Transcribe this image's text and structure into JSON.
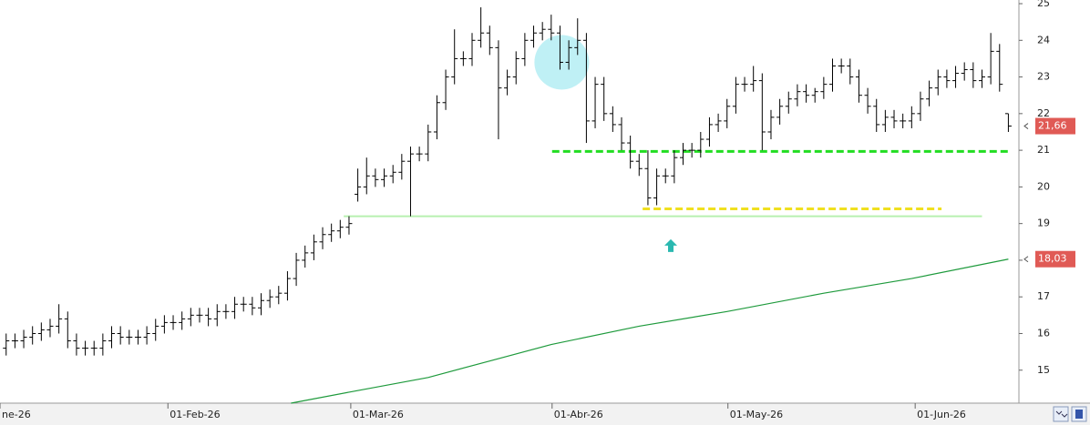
{
  "chart_data": {
    "type": "ohlc",
    "open": [
      15.6,
      15.8,
      15.8,
      15.9,
      16.0,
      16.1,
      16.2,
      16.4,
      15.8,
      15.6,
      15.6,
      15.6,
      15.8,
      16.0,
      15.9,
      15.9,
      15.9,
      16.0,
      16.2,
      16.3,
      16.3,
      16.4,
      16.5,
      16.5,
      16.4,
      16.6,
      16.6,
      16.8,
      16.8,
      16.7,
      16.9,
      17.0,
      17.1,
      17.5,
      18.0,
      18.2,
      18.5,
      18.7,
      18.8,
      18.9,
      19.8,
      20.0,
      20.3,
      20.2,
      20.3,
      20.4,
      20.7,
      20.9,
      20.9,
      21.5,
      22.3,
      23.0,
      23.5,
      23.5,
      24.0,
      24.2,
      23.8,
      22.7,
      23.0,
      23.5,
      24.0,
      24.2,
      24.3,
      24.2,
      23.4,
      23.8,
      24.0,
      21.8,
      22.8,
      22.0,
      21.7,
      21.2,
      20.7,
      20.5,
      19.7,
      20.3,
      20.3,
      20.8,
      21.0,
      21.0,
      21.3,
      21.7,
      21.8,
      22.2,
      22.8,
      22.8,
      22.9,
      21.5,
      21.9,
      22.2,
      22.4,
      22.6,
      22.5,
      22.6,
      22.8,
      23.3,
      23.3,
      23.0,
      22.5,
      22.2,
      21.7,
      21.9,
      21.8,
      21.8,
      22.0,
      22.4,
      22.7,
      23.0,
      22.9,
      23.1,
      23.2,
      22.9,
      23.0,
      23.7,
      22.0
    ],
    "high": [
      16.0,
      16.0,
      16.1,
      16.2,
      16.3,
      16.4,
      16.8,
      16.6,
      16.0,
      15.8,
      15.8,
      16.0,
      16.2,
      16.2,
      16.1,
      16.1,
      16.2,
      16.4,
      16.5,
      16.5,
      16.6,
      16.7,
      16.7,
      16.7,
      16.8,
      16.8,
      17.0,
      17.0,
      17.0,
      17.1,
      17.2,
      17.3,
      17.7,
      18.2,
      18.4,
      18.7,
      18.9,
      19.0,
      19.1,
      19.2,
      20.5,
      20.8,
      20.5,
      20.5,
      20.6,
      20.9,
      21.1,
      21.1,
      21.7,
      22.5,
      23.2,
      24.3,
      23.7,
      24.2,
      24.9,
      24.4,
      24.0,
      23.2,
      23.7,
      24.2,
      24.4,
      24.5,
      24.7,
      24.4,
      24.0,
      24.6,
      24.2,
      23.0,
      23.0,
      22.2,
      21.9,
      21.4,
      20.9,
      21.0,
      20.5,
      20.5,
      21.0,
      21.2,
      21.2,
      21.5,
      21.9,
      22.0,
      22.4,
      23.0,
      23.0,
      23.3,
      23.1,
      22.1,
      22.4,
      22.6,
      22.8,
      22.8,
      22.7,
      23.0,
      23.5,
      23.5,
      23.5,
      23.2,
      22.7,
      22.4,
      22.1,
      22.1,
      22.0,
      22.2,
      22.6,
      22.9,
      23.2,
      23.2,
      23.3,
      23.4,
      23.4,
      23.2,
      24.2,
      23.9,
      22.0
    ],
    "low": [
      15.4,
      15.6,
      15.6,
      15.7,
      15.8,
      15.9,
      16.0,
      15.6,
      15.4,
      15.4,
      15.4,
      15.4,
      15.6,
      15.7,
      15.7,
      15.7,
      15.7,
      15.8,
      16.0,
      16.1,
      16.1,
      16.2,
      16.3,
      16.2,
      16.2,
      16.4,
      16.4,
      16.6,
      16.5,
      16.5,
      16.7,
      16.8,
      16.9,
      17.3,
      17.8,
      18.0,
      18.3,
      18.5,
      18.6,
      18.7,
      19.6,
      19.8,
      20.0,
      20.0,
      20.1,
      20.2,
      19.2,
      20.7,
      20.7,
      21.3,
      22.1,
      22.8,
      23.3,
      23.3,
      23.8,
      23.6,
      21.3,
      22.5,
      22.8,
      23.3,
      23.8,
      24.0,
      24.0,
      23.2,
      23.2,
      23.6,
      21.2,
      21.6,
      21.8,
      21.5,
      21.0,
      20.5,
      20.3,
      19.5,
      19.5,
      20.1,
      20.1,
      20.6,
      20.8,
      20.8,
      21.1,
      21.5,
      21.6,
      22.0,
      22.6,
      22.6,
      21.0,
      21.3,
      21.7,
      22.0,
      22.2,
      22.3,
      22.3,
      22.4,
      22.6,
      23.1,
      22.8,
      22.3,
      22.0,
      21.5,
      21.5,
      21.6,
      21.6,
      21.6,
      21.8,
      22.2,
      22.5,
      22.7,
      22.7,
      22.9,
      22.7,
      22.7,
      22.8,
      22.6,
      21.5
    ],
    "close": [
      15.8,
      15.8,
      15.9,
      16.0,
      16.1,
      16.2,
      16.4,
      15.8,
      15.6,
      15.6,
      15.6,
      15.8,
      16.0,
      15.9,
      15.9,
      15.9,
      16.0,
      16.2,
      16.3,
      16.3,
      16.4,
      16.5,
      16.5,
      16.4,
      16.6,
      16.6,
      16.8,
      16.8,
      16.7,
      16.9,
      17.0,
      17.1,
      17.5,
      18.0,
      18.2,
      18.5,
      18.7,
      18.8,
      18.9,
      19.0,
      20.0,
      20.3,
      20.2,
      20.3,
      20.4,
      20.7,
      20.9,
      20.9,
      21.5,
      22.3,
      23.0,
      23.5,
      23.5,
      24.0,
      24.2,
      23.8,
      22.7,
      23.0,
      23.5,
      24.0,
      24.2,
      24.3,
      24.2,
      23.4,
      23.8,
      24.0,
      21.8,
      22.8,
      22.0,
      21.7,
      21.2,
      20.7,
      20.5,
      19.7,
      20.3,
      20.3,
      20.8,
      21.0,
      21.0,
      21.3,
      21.7,
      21.8,
      22.2,
      22.8,
      22.8,
      22.9,
      21.5,
      21.9,
      22.2,
      22.4,
      22.6,
      22.5,
      22.6,
      22.8,
      23.3,
      23.3,
      23.0,
      22.5,
      22.2,
      21.7,
      21.9,
      21.8,
      21.8,
      22.0,
      22.4,
      22.7,
      23.0,
      22.9,
      23.1,
      23.2,
      22.9,
      23.0,
      23.7,
      22.8,
      21.66
    ],
    "color": "#000000",
    "moving_average": {
      "color": "#1e9a3c",
      "x": [
        32.4,
        39,
        48,
        55,
        62,
        72,
        82,
        93,
        103,
        114
      ],
      "values": [
        14.1,
        14.4,
        14.8,
        15.25,
        15.7,
        16.2,
        16.6,
        17.1,
        17.5,
        18.03
      ]
    },
    "last_price": {
      "value": 21.66,
      "label": "21,66",
      "color": "#e05a55"
    },
    "ma_last": {
      "value": 18.03,
      "label": "18,03",
      "color": "#e05a55"
    },
    "levels": [
      {
        "value": 20.97,
        "x": [
          62.1,
          114
        ],
        "color": "#22dd22",
        "style": "dashed"
      },
      {
        "value": 19.4,
        "x": [
          72.4,
          106.4
        ],
        "color": "#f0e020",
        "style": "dashed"
      },
      {
        "value": 19.2,
        "x": [
          38.4,
          111
        ],
        "color": "#b8f0b0",
        "style": "solid"
      }
    ],
    "circle": {
      "x": 63.2,
      "value": 23.4,
      "color": "#bff0f5"
    },
    "arrow": {
      "x": 75.6,
      "value": 18.4,
      "color": "#2ab8b0"
    },
    "xlim": [
      -0.7,
      115.2
    ],
    "xticks": [
      {
        "value": -0.7,
        "label": "ne-26"
      },
      {
        "value": 18.4,
        "label": "01-Feb-26"
      },
      {
        "value": 39.2,
        "label": "01-Mar-26"
      },
      {
        "value": 62.1,
        "label": "01-Abr-26"
      },
      {
        "value": 82.1,
        "label": "01-May-26"
      },
      {
        "value": 103.4,
        "label": "01-Jun-26"
      }
    ],
    "ylim": [
      14.1,
      25.1
    ],
    "yticks": [
      15,
      16,
      17,
      18,
      19,
      20,
      21,
      22,
      23,
      24,
      25
    ]
  }
}
